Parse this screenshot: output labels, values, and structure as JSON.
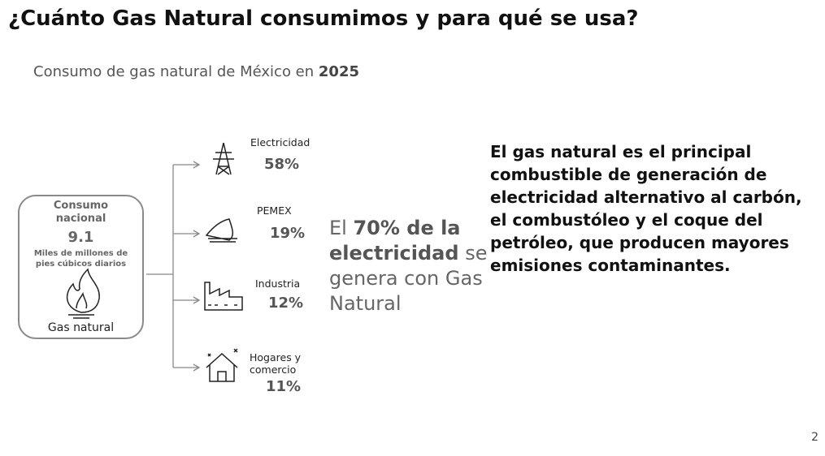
{
  "header": {
    "title": "¿Cuánto Gas Natural consumimos y para qué se usa?",
    "subtitle": {
      "text": "Consumo de gas natural de México en ",
      "year": "2025"
    }
  },
  "box": {
    "heading": "Consumo nacional",
    "value": "9.1",
    "unit": "Miles de millones de pies cúbicos diarios",
    "label": "Gas natural"
  },
  "branches": [
    {
      "label": "Electricidad",
      "share": "58%"
    },
    {
      "label": "PEMEX",
      "share": "19%"
    },
    {
      "label": "Industria",
      "share": "12%"
    },
    {
      "label": "Hogares y comercio",
      "share": "11%"
    }
  ],
  "highlight": {
    "before": "El ",
    "bold": "70% de la electricidad",
    "after": " se genera con Gas Natural"
  },
  "statement": "El gas natural es el principal combustible de  generación de electricidad alternativo al carbón, el combustóleo y el coque del petróleo, que producen mayores emisiones contaminantes.",
  "page_number": "2"
}
